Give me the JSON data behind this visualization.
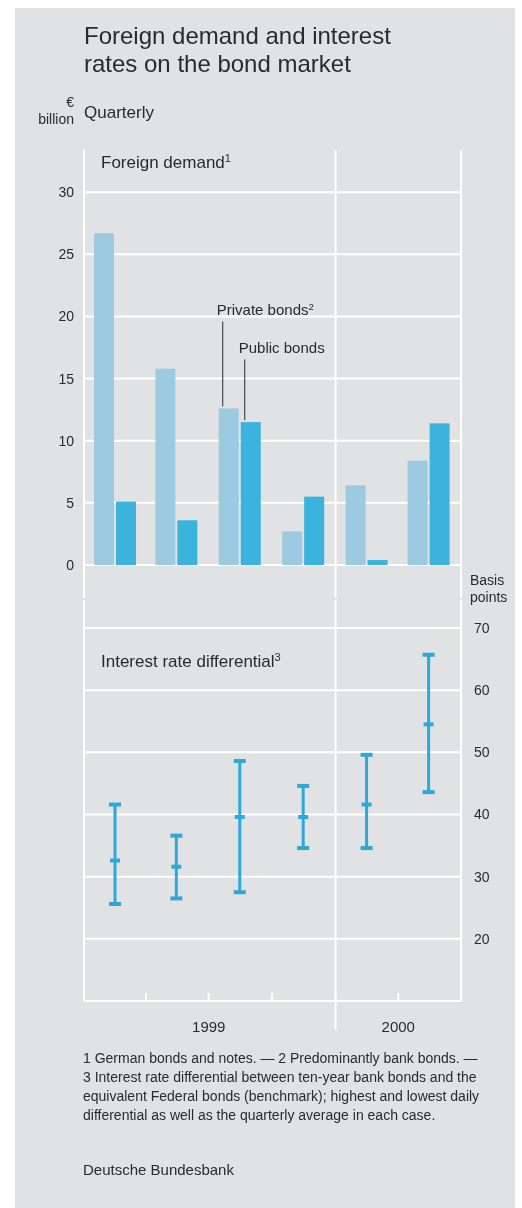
{
  "chart_data": [
    {
      "type": "bar",
      "title": "Foreign demand and interest rates on the bond market",
      "subtitle": "Quarterly",
      "annotations": [
        "Foreign demand$^{1}$"
      ],
      "ylabel": "€ billion",
      "x": [
        "1999-02-15",
        "1999-05-15",
        "1999-08-15",
        "1999-11-15",
        "2000-02-15",
        "2000-05-15"
      ],
      "xlim": [
        "1999-01-01",
        "2000-07-01"
      ],
      "series": [
        {
          "name": "Private bonds$^{2}$",
          "color": "#9ccae0",
          "values": [
            26.7,
            15.8,
            12.6,
            2.7,
            6.4,
            8.4
          ]
        },
        {
          "name": "Public bonds",
          "color": "#3cb3dc",
          "values": [
            5.1,
            3.6,
            11.5,
            5.5,
            0.4,
            11.4
          ]
        }
      ],
      "ylim": [
        0,
        33.4
      ],
      "yticks": [
        0,
        5,
        10,
        15,
        20,
        25,
        30
      ],
      "grid": "y",
      "legend": false,
      "tick_labels": "y",
      "ref_lines": [
        {
          "axis": "x",
          "value": "2000-01-01",
          "color": "#ffffff"
        }
      ]
    },
    {
      "type": "scatter",
      "annotations": [
        "Interest rate differential$^{3}$",
        "1 German bonds and notes. — 2 Predominantly bank bonds. — 3 Interest rate differential between ten-year bank bonds and the equivalent Federal bonds (benchmark); highest and lowest daily differential as well as the quarterly average in each case.",
        "Deutsche Bundesbank"
      ],
      "y2label": "Basis points",
      "x": [
        "1999-02-15",
        "1999-05-15",
        "1999-08-15",
        "1999-11-15",
        "2000-02-15",
        "2000-05-15"
      ],
      "xlim": [
        "1999-01-01",
        "2000-07-01"
      ],
      "xticks": [
        {
          "value": "1999-04-01",
          "label": null
        },
        {
          "value": "1999-07-01",
          "label": "1999"
        },
        {
          "value": "1999-10-01",
          "label": null
        },
        {
          "value": "2000-01-01",
          "label": null
        },
        {
          "value": "2000-04-01",
          "label": "2000"
        }
      ],
      "series": [
        {
          "color": "#2fa8d9",
          "axis": "y2",
          "values": [
            32.6,
            31.6,
            39.6,
            39.6,
            41.6,
            54.5
          ],
          "errors": [
            [
              25.6,
              41.6
            ],
            [
              26.5,
              36.6
            ],
            [
              27.5,
              48.6
            ],
            [
              34.6,
              44.6
            ],
            [
              34.6,
              49.6
            ],
            [
              43.6,
              65.7
            ]
          ]
        }
      ],
      "y2lim": [
        10,
        70
      ],
      "y2ticks": [
        20,
        30,
        40,
        50,
        60,
        70
      ],
      "grid": "y",
      "legend": false,
      "ref_lines": [
        {
          "axis": "x",
          "value": "2000-01-01",
          "color": "#ffffff"
        }
      ]
    }
  ]
}
